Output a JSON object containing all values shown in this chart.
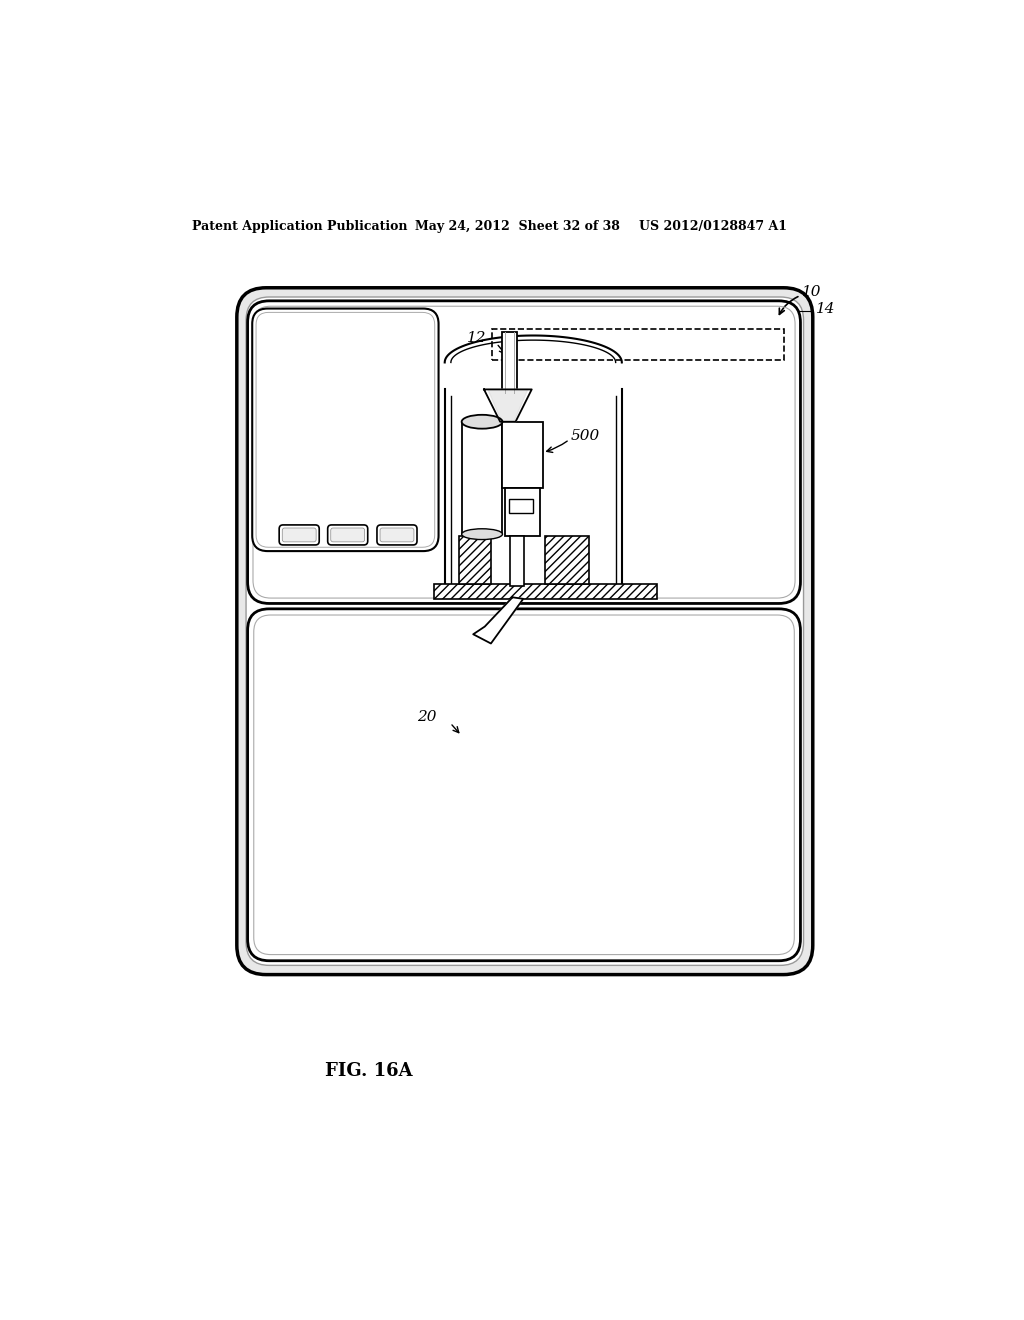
{
  "header_left": "Patent Application Publication",
  "header_mid": "May 24, 2012  Sheet 32 of 38",
  "header_right": "US 2012/0128847 A1",
  "fig_caption": "FIG. 16A",
  "label_10": "10",
  "label_14": "14",
  "label_12": "12",
  "label_500": "500",
  "label_20": "20",
  "bg_color": "#ffffff",
  "lc": "#000000"
}
